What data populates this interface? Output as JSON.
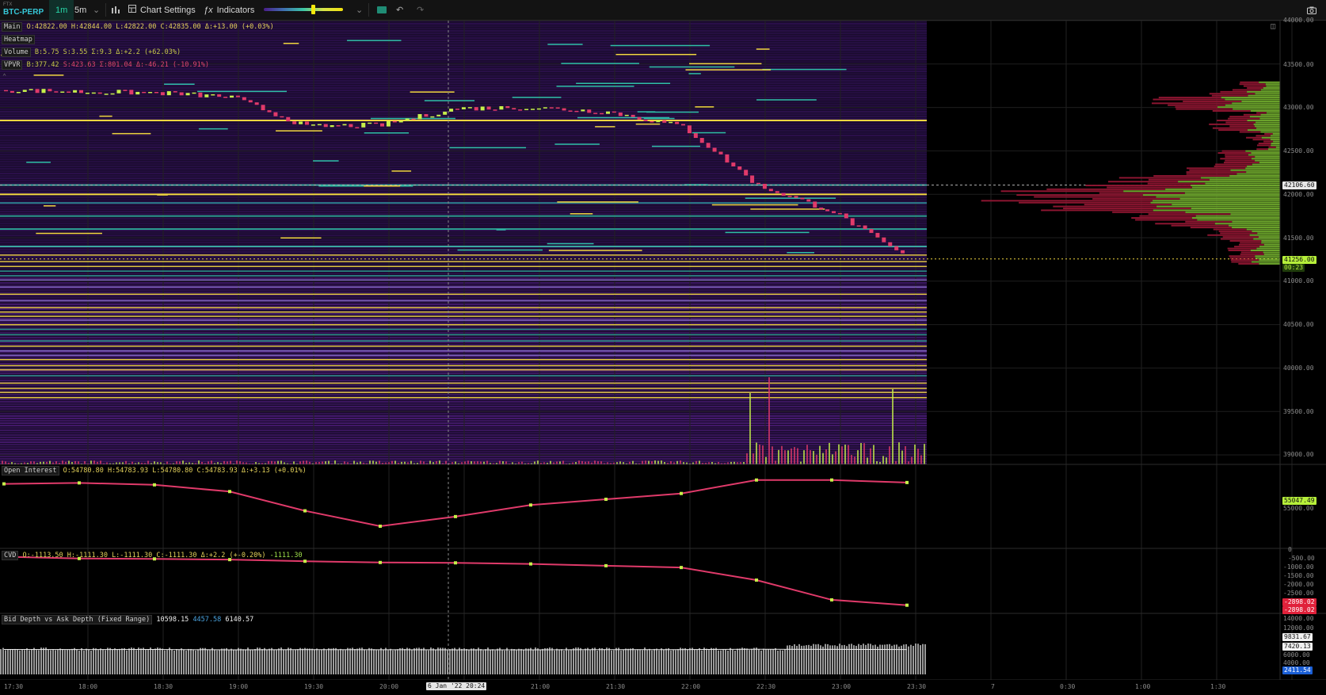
{
  "toolbar": {
    "exchange": "FTX",
    "symbol": "BTC-PERP",
    "timeframes": [
      "1m",
      "5m"
    ],
    "active_timeframe": "1m",
    "chart_settings": "Chart Settings",
    "indicators": "Indicators",
    "icons": [
      "chevron-down-icon",
      "bar-chart-icon",
      "settings-icon",
      "function-icon",
      "heatmap-toggle-icon",
      "undo-icon",
      "redo-icon",
      "camera-icon"
    ]
  },
  "legend": {
    "main_label": "Main",
    "main_values": "O:42822.00 H:42844.00 L:42822.00 C:42835.00 Δ:+13.00 (+0.03%)",
    "heatmap_label": "Heatmap",
    "volume_label": "Volume",
    "volume_values": "B:5.75 S:3.55 Σ:9.3 Δ:+2.2 (+62.03%)",
    "vpvr_label": "VPVR",
    "vpvr_b": "B:377.42",
    "vpvr_s": "S:423.63",
    "vpvr_rest": "Σ:801.04 Δ:-46.21 (-10.91%)",
    "oi_label": "Open Interest",
    "oi_values": "O:54780.80 H:54783.93 L:54780.80 C:54783.93 Δ:+3.13 (+0.01%)",
    "cvd_label": "CVD",
    "cvd_values": "O:-1113.50 H:-1111.30 L:-1111.30 C:-1111.30 Δ:+2.2 (+-0.20%)",
    "cvd_current": "-1111.30",
    "depth_label": "Bid Depth vs Ask Depth (Fixed Range)",
    "depth_v1": "10598.15",
    "depth_v2": "4457.58",
    "depth_v3": "6140.57"
  },
  "price_axis": [
    "43500.00",
    "43000.00",
    "42500.00",
    "42000.00",
    "41500.00",
    "41000.00",
    "40500.00",
    "40000.00",
    "39500.00",
    "39000.00"
  ],
  "price_axis_top": "44000.00",
  "price_tags": {
    "marker": "42106.60",
    "current": "41256.00",
    "countdown": "00:23"
  },
  "oi_axis": {
    "value": "55047.49",
    "below": "55000.00"
  },
  "cvd_axis": [
    "0",
    "-500.00",
    "-1000.00",
    "-1500.00",
    "-2000.00",
    "-2500.00"
  ],
  "cvd_tags": [
    "-2898.02",
    "-2898.02"
  ],
  "depth_axis": [
    "14000.00",
    "12000.00"
  ],
  "depth_tags": {
    "a": "9831.67",
    "b": "7420.13",
    "c": "2411.54",
    "bottom": "6000.00",
    "bottom2": "4000.00"
  },
  "time_axis": [
    "17:30",
    "18:00",
    "18:30",
    "19:00",
    "19:30",
    "20:00",
    "21:00",
    "21:30",
    "22:00",
    "22:30",
    "23:00",
    "23:30",
    "7",
    "0:30",
    "1:00",
    "1:30"
  ],
  "crosshair_time": "6 Jan '22 20:24",
  "colors": {
    "up": "#c6f04a",
    "down": "#e03a6a",
    "accent": "#28d7a8",
    "yellow": "#f1d640",
    "vpvr_buy": "#6da62c",
    "vpvr_sell": "#8b1530"
  },
  "chart_data": {
    "type": "line",
    "x": [
      "17:30",
      "18:00",
      "18:30",
      "19:00",
      "19:30",
      "20:00",
      "20:30",
      "21:00",
      "21:30",
      "22:00",
      "22:30",
      "23:00",
      "23:30"
    ],
    "series": [
      {
        "values": [
          43200,
          43180,
          43170,
          43120,
          42780,
          42800,
          42990,
          43000,
          42950,
          42780,
          42100,
          41800,
          41256
        ]
      }
    ],
    "ylim": [
      39000,
      44000
    ],
    "oi": [
      55040,
      55045,
      55035,
      55000,
      54900,
      54820,
      54870,
      54930,
      54960,
      54990,
      55060,
      55060,
      55047
    ],
    "cvd": [
      -200,
      -300,
      -320,
      -360,
      -450,
      -520,
      -540,
      -600,
      -700,
      -800,
      -1500,
      -2600,
      -2898
    ],
    "depth": [
      12650,
      12640,
      12650,
      12600,
      12620,
      12610,
      12600,
      12600,
      12620,
      12630,
      12680,
      12660,
      12640
    ]
  }
}
